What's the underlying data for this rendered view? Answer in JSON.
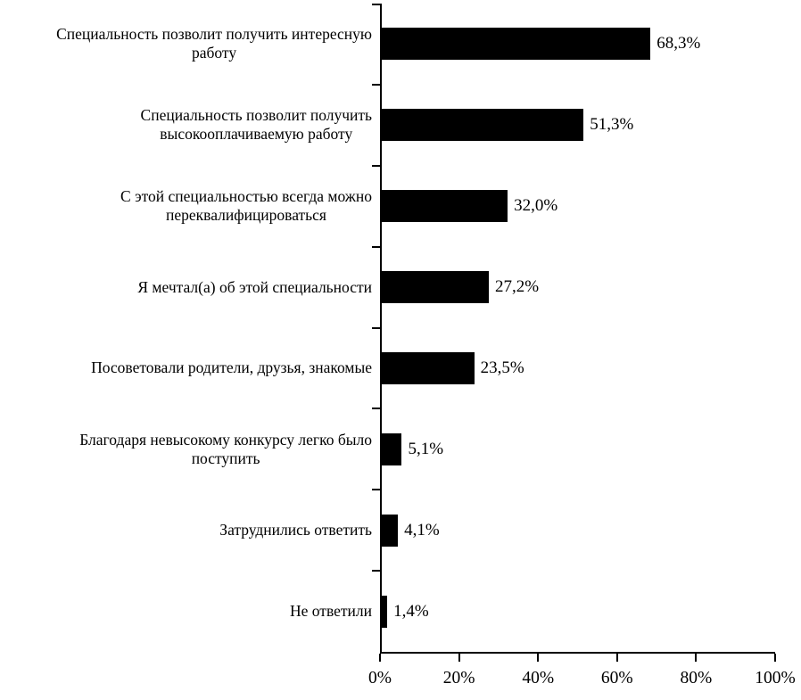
{
  "chart_data": {
    "type": "bar",
    "orientation": "horizontal",
    "title": "",
    "xlabel": "",
    "ylabel": "",
    "xlim": [
      0,
      100
    ],
    "grid": false,
    "legend_position": "none",
    "bar_color": "#000000",
    "background_color": "#ffffff",
    "x_ticks": [
      0,
      20,
      40,
      60,
      80,
      100
    ],
    "x_tick_labels": [
      "0%",
      "20%",
      "40%",
      "60%",
      "80%",
      "100%"
    ],
    "categories": [
      "Специальность позволит получить интересную\nработу",
      "Специальность позволит получить\nвысокооплачиваемую работу",
      "С этой специальностью всегда можно\nпереквалифицироваться",
      "Я мечтал(а) об этой специальности",
      "Посоветовали родители, друзья, знакомые",
      "Благодаря невысокому конкурсу легко было\nпоступить",
      "Затруднились ответить",
      "Не ответили"
    ],
    "values": [
      68.3,
      51.3,
      32.0,
      27.2,
      23.5,
      5.1,
      4.1,
      1.4
    ],
    "data_labels": [
      "68,3%",
      "51,3%",
      "32,0%",
      "27,2%",
      "23,5%",
      "5,1%",
      "4,1%",
      "1,4%"
    ]
  }
}
